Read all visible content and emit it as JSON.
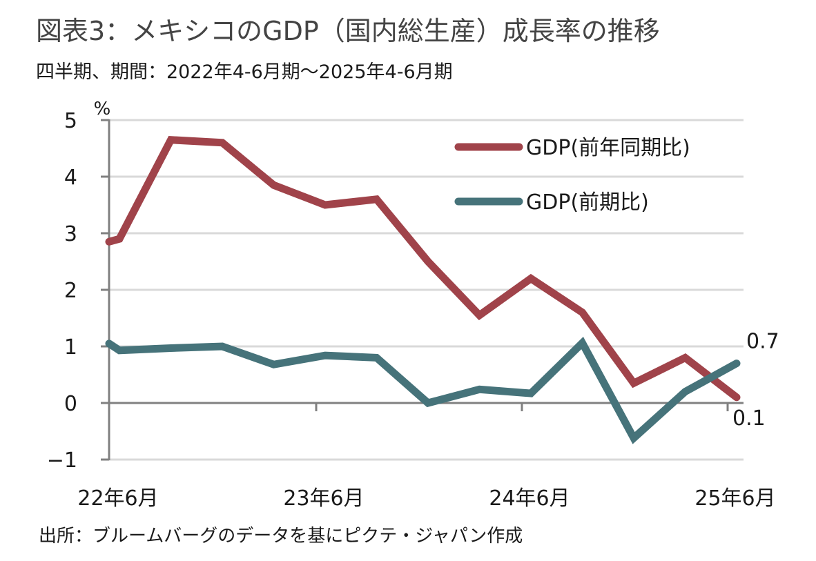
{
  "header": {
    "title": "図表3：メキシコのGDP（国内総生産）成長率の推移",
    "subtitle": "四半期、期間：2022年4-6月期～2025年4-6月期"
  },
  "footer": {
    "source": "出所：ブルームバーグのデータを基にピクテ・ジャパン作成"
  },
  "chart_data": {
    "type": "line",
    "title": "メキシコのGDP（国内総生産）成長率の推移",
    "xlabel": "",
    "ylabel": "%",
    "unit_label": "%",
    "ylim": [
      -1,
      5
    ],
    "yticks": [
      5,
      4,
      3,
      2,
      1,
      0,
      -1
    ],
    "grid": true,
    "legend_position": "top-right",
    "x": [
      "22年6月",
      "22年9月",
      "22年12月",
      "23年3月",
      "23年6月",
      "23年9月",
      "23年12月",
      "24年3月",
      "24年6月",
      "24年9月",
      "24年12月",
      "25年3月",
      "25年6月"
    ],
    "xtick_labels": [
      "22年6月",
      "23年6月",
      "24年6月",
      "25年6月"
    ],
    "xtick_label_indices": [
      0,
      4,
      8,
      12
    ],
    "series": [
      {
        "name": "GDP(前年同期比)",
        "color": "#a0434a",
        "axis_start_value": 2.85,
        "values": [
          2.9,
          4.65,
          4.6,
          3.85,
          3.5,
          3.6,
          2.5,
          1.55,
          2.2,
          1.6,
          0.35,
          0.8,
          0.1
        ]
      },
      {
        "name": "GDP(前期比)",
        "color": "#46737a",
        "axis_start_value": 1.05,
        "values": [
          0.93,
          0.97,
          1.0,
          0.68,
          0.84,
          0.8,
          0.0,
          0.24,
          0.17,
          1.06,
          -0.62,
          0.2,
          0.7
        ]
      }
    ],
    "annotations": [
      {
        "text": "0.7",
        "series": "GDP(前期比)",
        "index": 12
      },
      {
        "text": "0.1",
        "series": "GDP(前年同期比)",
        "index": 12
      }
    ],
    "axis_color": "#808080",
    "grid_color": "#d9d9d9"
  }
}
